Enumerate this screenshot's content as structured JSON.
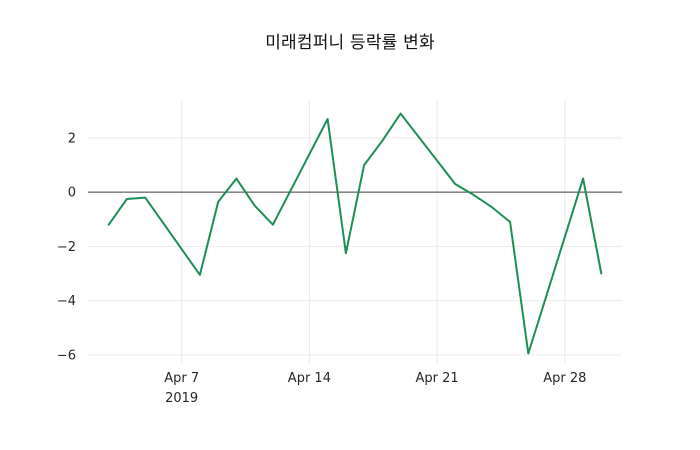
{
  "chart_data": {
    "type": "line",
    "title": "미래컴퍼니 등락률 변화",
    "series": [
      {
        "name": "등락률",
        "x": [
          "2019-04-03",
          "2019-04-04",
          "2019-04-05",
          "2019-04-08",
          "2019-04-09",
          "2019-04-10",
          "2019-04-11",
          "2019-04-12",
          "2019-04-15",
          "2019-04-16",
          "2019-04-17",
          "2019-04-18",
          "2019-04-19",
          "2019-04-22",
          "2019-04-23",
          "2019-04-24",
          "2019-04-25",
          "2019-04-26",
          "2019-04-29",
          "2019-04-30"
        ],
        "values": [
          -1.2,
          -0.25,
          -0.2,
          -3.05,
          -0.35,
          0.5,
          -0.5,
          -1.2,
          2.7,
          -2.25,
          1.0,
          1.9,
          2.9,
          0.3,
          -0.1,
          -0.55,
          -1.1,
          -5.95,
          0.5,
          -3.0
        ]
      }
    ],
    "xlabel": "",
    "ylabel": "",
    "ylim": [
      -6.3,
      3.4
    ],
    "yticks": [
      {
        "value": 2,
        "label": "2"
      },
      {
        "value": 0,
        "label": "0"
      },
      {
        "value": -2,
        "label": "−2"
      },
      {
        "value": -4,
        "label": "−4"
      },
      {
        "value": -6,
        "label": "−6"
      }
    ],
    "xticks": [
      {
        "date": "2019-04-07",
        "label": "Apr 7",
        "sublabel": "2019"
      },
      {
        "date": "2019-04-14",
        "label": "Apr 14",
        "sublabel": ""
      },
      {
        "date": "2019-04-21",
        "label": "Apr 21",
        "sublabel": ""
      },
      {
        "date": "2019-04-28",
        "label": "Apr 28",
        "sublabel": ""
      }
    ],
    "grid": true,
    "legend": false,
    "zeroline": true,
    "colors": {
      "line": "#1c8f55",
      "gridline": "#eaeaea",
      "zeroline": "#3c3c3c",
      "tick_text": "#262626",
      "background": "#ffffff"
    }
  }
}
